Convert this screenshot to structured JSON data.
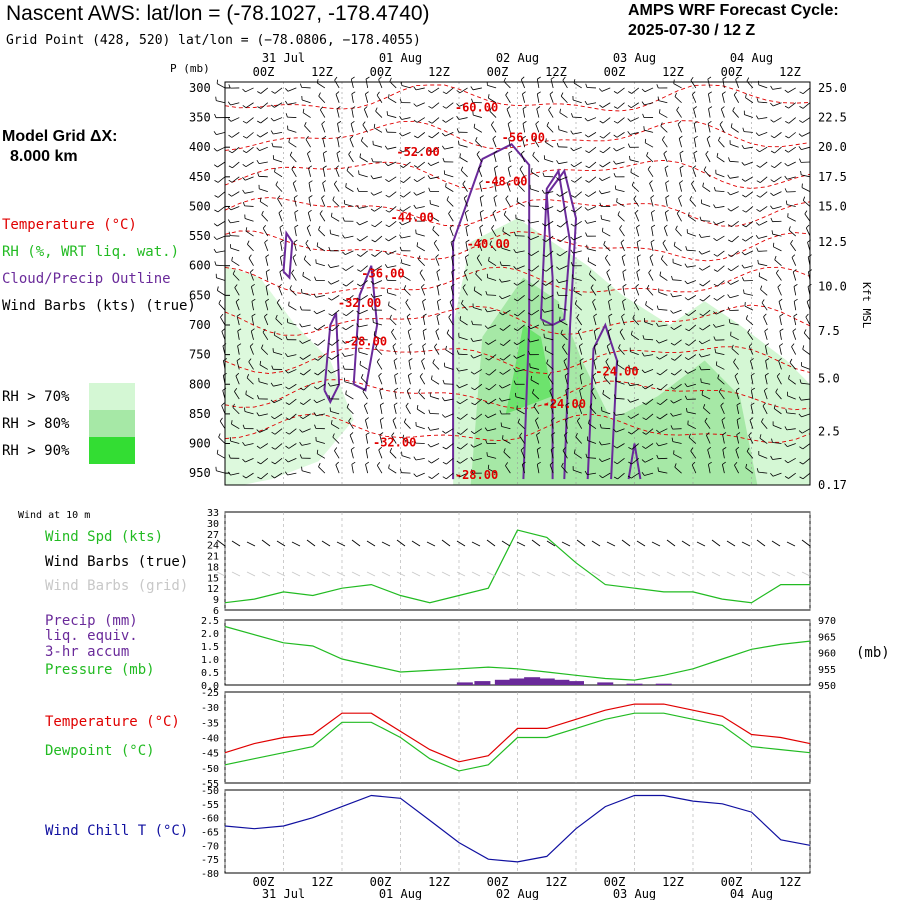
{
  "header": {
    "title": "Nascent AWS:  lat/lon = (-78.1027, -178.4740)",
    "subtitle": "Grid Point (428, 520) lat/lon = (−78.0806, −178.4055)",
    "cycle_line1": "AMPS WRF Forecast Cycle:",
    "cycle_line2": "2025-07-30 / 12  Z"
  },
  "grid_info": {
    "line1": "Model Grid ΔX:",
    "line2": "8.000 km"
  },
  "colors": {
    "temperature": "#e00000",
    "rh": "#22bb22",
    "cloud": "#6a2a9a",
    "wind": "#000000",
    "wind_grid": "#c8c8c8",
    "wind_chill": "#1010a0",
    "rh70": "#d4f7d4",
    "rh80": "#a6e8a6",
    "rh90": "#33dd33"
  },
  "legend": {
    "temperature": "Temperature (°C)",
    "rh": "RH (%, WRT liq. wat.)",
    "cloud": "Cloud/Precip Outline",
    "wind": "Wind Barbs (kts) (true)",
    "rh_bins": [
      "RH > 70%",
      "RH > 80%",
      "RH > 90%"
    ]
  },
  "time_axis": {
    "top_dates": [
      "31 Jul",
      "01 Aug",
      "02 Aug",
      "03 Aug",
      "04 Aug"
    ],
    "top_date_index": [
      1,
      3,
      5,
      7,
      9
    ],
    "hour_labels": [
      "00Z",
      "12Z",
      "00Z",
      "12Z",
      "00Z",
      "12Z",
      "00Z",
      "12Z",
      "00Z",
      "12Z"
    ],
    "hour_index": [
      1,
      2,
      3,
      4,
      5,
      6,
      7,
      8,
      9,
      10
    ],
    "bottom_dates": [
      "31 Jul",
      "01 Aug",
      "02 Aug",
      "03 Aug",
      "04 Aug"
    ],
    "bottom_date_index": [
      1,
      3,
      5,
      7,
      9
    ],
    "total_12h_steps": 10
  },
  "chart_data": [
    {
      "type": "heatmap",
      "name": "cross-section",
      "yaxis_label": "P (mb)",
      "pressure_ticks": [
        300,
        350,
        400,
        450,
        500,
        550,
        600,
        650,
        700,
        750,
        800,
        850,
        900,
        950
      ],
      "ylim": [
        290,
        970
      ],
      "right_label": "Kft MSL",
      "height_ticks": [
        {
          "p": 300,
          "label": "25.0"
        },
        {
          "p": 350,
          "label": "22.5"
        },
        {
          "p": 400,
          "label": "20.0"
        },
        {
          "p": 450,
          "label": "17.5"
        },
        {
          "p": 500,
          "label": "15.0"
        },
        {
          "p": 560,
          "label": "12.5"
        },
        {
          "p": 635,
          "label": "10.0"
        },
        {
          "p": 710,
          "label": "7.5"
        },
        {
          "p": 790,
          "label": "5.0"
        },
        {
          "p": 880,
          "label": "2.5"
        },
        {
          "p": 970,
          "label": "0.17"
        }
      ],
      "temperature_labels": [
        {
          "t": 4.3,
          "p": 340,
          "label": "-60.00"
        },
        {
          "t": 5.1,
          "p": 390,
          "label": "-56.00"
        },
        {
          "t": 3.3,
          "p": 415,
          "label": "-52.00"
        },
        {
          "t": 4.8,
          "p": 465,
          "label": "-48.00"
        },
        {
          "t": 3.2,
          "p": 525,
          "label": "-44.00"
        },
        {
          "t": 4.5,
          "p": 570,
          "label": "-40.00"
        },
        {
          "t": 2.7,
          "p": 620,
          "label": "-36.00"
        },
        {
          "t": 2.3,
          "p": 670,
          "label": "-32.00"
        },
        {
          "t": 2.4,
          "p": 735,
          "label": "-28.00"
        },
        {
          "t": 6.7,
          "p": 785,
          "label": "-24.00"
        },
        {
          "t": 5.8,
          "p": 840,
          "label": "-24.00"
        },
        {
          "t": 2.9,
          "p": 905,
          "label": "-32.00"
        },
        {
          "t": 4.3,
          "p": 960,
          "label": "-28.00"
        }
      ]
    },
    {
      "type": "line",
      "name": "wind-10m",
      "panel_label": "Wind at 10 m",
      "labels": {
        "speed": "Wind Spd (kts)",
        "barbs_true": "Wind Barbs (true)",
        "barbs_grid": "Wind Barbs (grid)"
      },
      "yticks": [
        6,
        9,
        12,
        15,
        18,
        21,
        24,
        27,
        30,
        33
      ],
      "ylim": [
        6,
        33
      ],
      "x": [
        0,
        0.5,
        1,
        1.5,
        2,
        2.5,
        3,
        3.5,
        4,
        4.5,
        5,
        5.5,
        6,
        6.5,
        7,
        7.5,
        8,
        8.5,
        9,
        9.5,
        10
      ],
      "series": [
        {
          "values": [
            8,
            9,
            11,
            10,
            12,
            13,
            10,
            8,
            10,
            12,
            28,
            26,
            19,
            13,
            12,
            11,
            11,
            9,
            8,
            13,
            13
          ]
        }
      ]
    },
    {
      "type": "bar",
      "name": "precip-pressure",
      "labels": {
        "precip1": "Precip (mm)",
        "precip2": "liq. equiv.",
        "precip3": "3-hr accum",
        "pressure": "Pressure (mb)"
      },
      "left_ticks": [
        "0.0",
        "0.5",
        "1.0",
        "1.5",
        "2.0",
        "2.5"
      ],
      "left_ylim": [
        0,
        2.5
      ],
      "right_ticks": [
        "950",
        "955",
        "960",
        "965",
        "970"
      ],
      "right_ylim": [
        950,
        970
      ],
      "right_unit": "(mb)",
      "precip_x": [
        4.1,
        4.4,
        4.75,
        5.0,
        5.25,
        5.5,
        5.75,
        6.0,
        6.5,
        7.0,
        7.5
      ],
      "precip_values": [
        0.1,
        0.15,
        0.2,
        0.25,
        0.3,
        0.25,
        0.2,
        0.15,
        0.1,
        0.05,
        0.05
      ],
      "pressure_x": [
        0,
        1,
        1.5,
        2,
        2.5,
        3,
        3.5,
        4,
        4.5,
        5,
        5.5,
        6,
        6.5,
        7,
        7.5,
        8,
        8.5,
        9,
        9.5,
        10
      ],
      "pressure_values": [
        968,
        963,
        962,
        958,
        956,
        954,
        954.5,
        955,
        955.5,
        955,
        954,
        953,
        952,
        951.5,
        953,
        955,
        958,
        961,
        962.5,
        963.5
      ]
    },
    {
      "type": "line",
      "name": "temperature-dewpoint",
      "labels": {
        "temperature": "Temperature (°C)",
        "dewpoint": "Dewpoint (°C)"
      },
      "yticks": [
        -55,
        -50,
        -45,
        -40,
        -35,
        -30,
        -25
      ],
      "ylim": [
        -55,
        -25
      ],
      "x": [
        0,
        0.5,
        1,
        1.5,
        2,
        2.5,
        3,
        3.5,
        4,
        4.5,
        5,
        5.5,
        6,
        6.5,
        7,
        7.5,
        8,
        8.5,
        9,
        9.5,
        10
      ],
      "series": [
        {
          "values": [
            -45,
            -42,
            -40,
            -39,
            -32,
            -32,
            -38,
            -44,
            -48,
            -46,
            -37,
            -37,
            -34,
            -31,
            -29,
            -29,
            -31,
            -33,
            -39,
            -40,
            -42
          ]
        },
        {
          "values": [
            -49,
            -47,
            -45,
            -43,
            -35,
            -35,
            -40,
            -47,
            -51,
            -49,
            -40,
            -40,
            -37,
            -34,
            -32,
            -32,
            -34,
            -36,
            -43,
            -44,
            -45
          ]
        }
      ]
    },
    {
      "type": "line",
      "name": "wind-chill",
      "labels": {
        "wind_chill": "Wind Chill T (°C)"
      },
      "yticks": [
        -80,
        -75,
        -70,
        -65,
        -60,
        -55,
        -50
      ],
      "ylim": [
        -80,
        -50
      ],
      "x": [
        0,
        0.5,
        1,
        1.5,
        2,
        2.5,
        3,
        3.5,
        4,
        4.5,
        5,
        5.5,
        6,
        6.5,
        7,
        7.5,
        8,
        8.5,
        9,
        9.5,
        10
      ],
      "series": [
        {
          "values": [
            -63,
            -64,
            -63,
            -60,
            -56,
            -52,
            -53,
            -61,
            -69,
            -75,
            -76,
            -74,
            -64,
            -56,
            -52,
            -52,
            -54,
            -55,
            -58,
            -68,
            -70
          ]
        }
      ]
    }
  ]
}
